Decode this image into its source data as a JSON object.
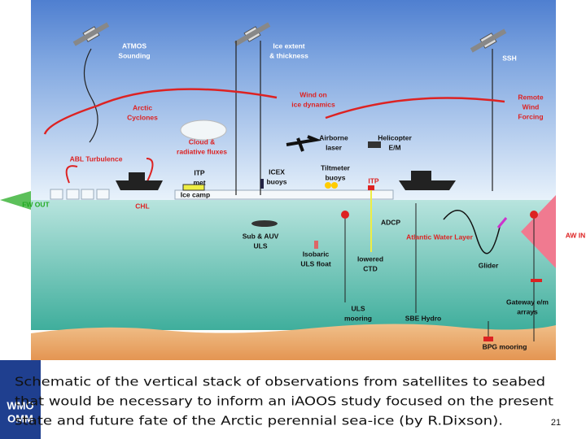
{
  "diagram": {
    "labels": [
      {
        "lines": [
          "ATMOS",
          "Sounding"
        ]
      },
      {
        "lines": [
          "Ice extent",
          "& thickness"
        ]
      },
      {
        "lines": [
          "SSH"
        ]
      },
      {
        "lines": [
          "Wind on",
          "ice dynamics"
        ]
      },
      {
        "lines": [
          "Remote",
          "Wind",
          "Forcing"
        ]
      },
      {
        "lines": [
          "Arctic",
          "Cyclones"
        ]
      },
      {
        "lines": [
          "Cloud &",
          "radiative fluxes"
        ]
      },
      {
        "lines": [
          "Airborne",
          "laser"
        ]
      },
      {
        "lines": [
          "Helicopter",
          "E/M"
        ]
      },
      {
        "lines": [
          "ABL Turbulence"
        ]
      },
      {
        "lines": [
          "ITP",
          "met"
        ]
      },
      {
        "lines": [
          "ICEX",
          "buoys"
        ]
      },
      {
        "lines": [
          "Tiltmeter",
          "buoys"
        ]
      },
      {
        "lines": [
          "ITP"
        ]
      },
      {
        "lines": [
          "FW OUT"
        ]
      },
      {
        "lines": [
          "CHL"
        ]
      },
      {
        "lines": [
          "Ice camp"
        ]
      },
      {
        "lines": [
          "ADCP"
        ]
      },
      {
        "lines": [
          "Atlantic Water Layer"
        ]
      },
      {
        "lines": [
          "AW IN"
        ]
      },
      {
        "lines": [
          "Sub & AUV",
          "ULS"
        ]
      },
      {
        "lines": [
          "Isobaric",
          "ULS float"
        ]
      },
      {
        "lines": [
          "lowered",
          "CTD"
        ]
      },
      {
        "lines": [
          "Glider"
        ]
      },
      {
        "lines": [
          "Gateway e/m",
          "arrays"
        ]
      },
      {
        "lines": [
          "ULS",
          "mooring"
        ]
      },
      {
        "lines": [
          "SBE Hydro"
        ]
      },
      {
        "lines": [
          "BPG mooring"
        ]
      }
    ]
  },
  "caption": {
    "lines": [
      "Schematic of the vertical stack of observations from satellites to seabed",
      "that would be necessary to inform an iAOOS study focused on the present",
      "state and future fate of the Arctic perennial sea-ice (by R.Dixson)."
    ]
  },
  "page_number": "21",
  "logo": {
    "lines": [
      "WMO",
      "OMM"
    ]
  }
}
